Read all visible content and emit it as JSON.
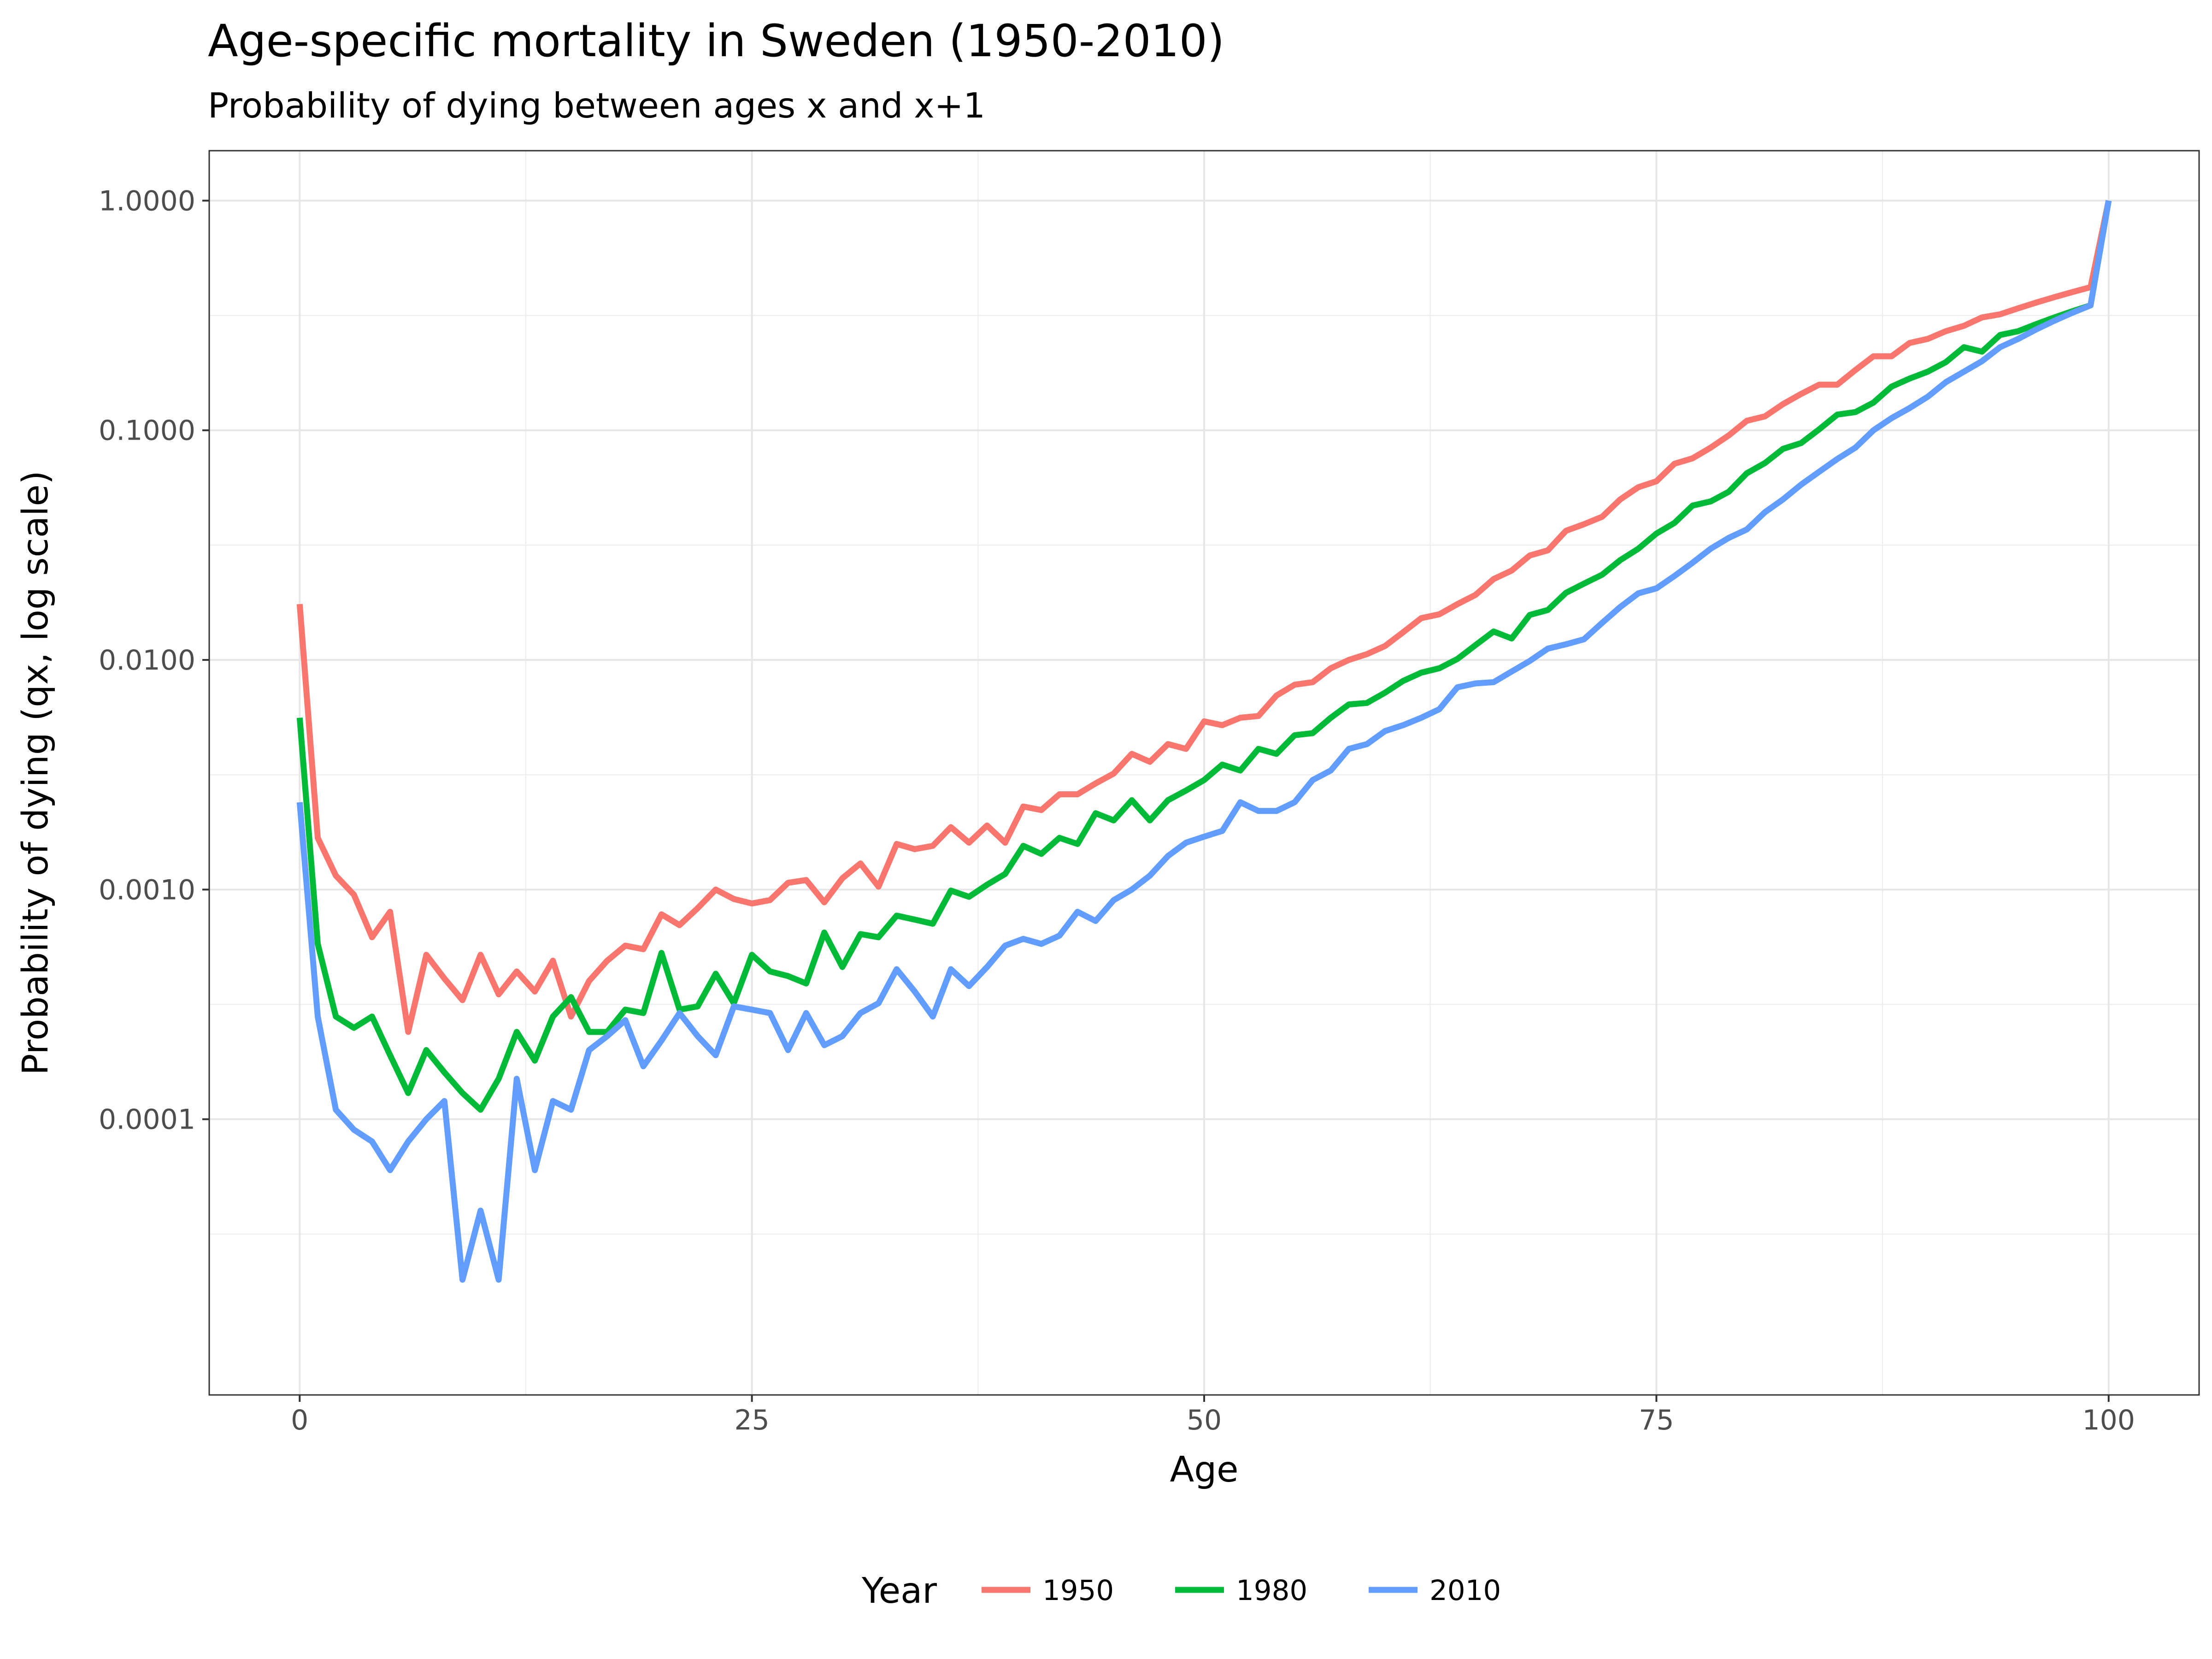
{
  "chart_data": {
    "type": "line",
    "title": "Age-specific mortality in Sweden (1950-2010)",
    "subtitle": "Probability of dying between ages x and x+1",
    "xlabel": "Age",
    "ylabel": "Probability of dying (qx, log scale)",
    "xlim": [
      -5,
      105
    ],
    "ylim": [
      6.3e-06,
      1.65
    ],
    "y_scale": "log",
    "x_ticks": [
      0,
      25,
      50,
      75,
      100
    ],
    "x_tick_labels": [
      "0",
      "25",
      "50",
      "75",
      "100"
    ],
    "y_ticks": [
      0.0001,
      0.001,
      0.01,
      0.1,
      1
    ],
    "y_tick_labels": [
      "0.0001",
      "0.0010",
      "0.0100",
      "0.1000",
      "1.0000"
    ],
    "grid": true,
    "legend_title": "Year",
    "legend_position": "bottom",
    "x": [
      0,
      1,
      2,
      3,
      4,
      5,
      6,
      7,
      8,
      9,
      10,
      11,
      12,
      13,
      14,
      15,
      16,
      17,
      18,
      19,
      20,
      21,
      22,
      23,
      24,
      25,
      26,
      27,
      28,
      29,
      30,
      31,
      32,
      33,
      34,
      35,
      36,
      37,
      38,
      39,
      40,
      41,
      42,
      43,
      44,
      45,
      46,
      47,
      48,
      49,
      50,
      51,
      52,
      53,
      54,
      55,
      56,
      57,
      58,
      59,
      60,
      61,
      62,
      63,
      64,
      65,
      66,
      67,
      68,
      69,
      70,
      71,
      72,
      73,
      74,
      75,
      76,
      77,
      78,
      79,
      80,
      81,
      82,
      83,
      84,
      85,
      86,
      87,
      88,
      89,
      90,
      91,
      92,
      93,
      94,
      95,
      96,
      97,
      98,
      99,
      100
    ],
    "series": [
      {
        "name": "1950",
        "color": "#F8766D",
        "values": [
          0.0175,
          0.00168,
          0.00115,
          0.00095,
          0.00062,
          0.0008,
          0.00024,
          0.00052,
          0.00041,
          0.00033,
          0.00052,
          0.00035,
          0.00044,
          0.00036,
          0.00049,
          0.00028,
          0.0004,
          0.00049,
          0.00057,
          0.00055,
          0.00078,
          0.0007,
          0.00083,
          0.001,
          0.00091,
          0.00087,
          0.0009,
          0.00107,
          0.0011,
          0.00088,
          0.00112,
          0.0013,
          0.00103,
          0.00158,
          0.0015,
          0.00155,
          0.00187,
          0.0016,
          0.0019,
          0.0016,
          0.0023,
          0.00222,
          0.0026,
          0.0026,
          0.0029,
          0.0032,
          0.0039,
          0.0036,
          0.0043,
          0.0041,
          0.0054,
          0.0052,
          0.0056,
          0.0057,
          0.007,
          0.0078,
          0.008,
          0.0092,
          0.01,
          0.0106,
          0.0115,
          0.0132,
          0.0152,
          0.0158,
          0.0175,
          0.0192,
          0.0225,
          0.0245,
          0.0285,
          0.03,
          0.0365,
          0.039,
          0.042,
          0.05,
          0.0565,
          0.06,
          0.0715,
          0.0755,
          0.084,
          0.095,
          0.11,
          0.115,
          0.13,
          0.144,
          0.158,
          0.158,
          0.183,
          0.21,
          0.21,
          0.24,
          0.25,
          0.27,
          0.285,
          0.31,
          0.32,
          0.34,
          0.36,
          0.38,
          0.4,
          0.42,
          1.0
        ]
      },
      {
        "name": "1980",
        "color": "#00BA38",
        "values": [
          0.0056,
          0.00058,
          0.00028,
          0.00025,
          0.00028,
          0.00019,
          0.00013,
          0.0002,
          0.00016,
          0.00013,
          0.00011,
          0.00015,
          0.00024,
          0.00018,
          0.00028,
          0.00034,
          0.00024,
          0.00024,
          0.0003,
          0.00029,
          0.00053,
          0.0003,
          0.00031,
          0.00043,
          0.00032,
          0.00052,
          0.00044,
          0.00042,
          0.00039,
          0.00065,
          0.00046,
          0.00064,
          0.00062,
          0.00077,
          0.00074,
          0.00071,
          0.00099,
          0.00093,
          0.00105,
          0.00117,
          0.00155,
          0.00143,
          0.00168,
          0.00158,
          0.00215,
          0.002,
          0.00245,
          0.002,
          0.00245,
          0.0027,
          0.003,
          0.0035,
          0.0033,
          0.0041,
          0.0039,
          0.0047,
          0.0048,
          0.0056,
          0.0064,
          0.0065,
          0.0072,
          0.0081,
          0.0088,
          0.0092,
          0.0101,
          0.0116,
          0.0133,
          0.0124,
          0.0157,
          0.0165,
          0.0196,
          0.0215,
          0.0235,
          0.0272,
          0.0305,
          0.0355,
          0.0395,
          0.047,
          0.049,
          0.054,
          0.065,
          0.072,
          0.083,
          0.088,
          0.101,
          0.117,
          0.12,
          0.132,
          0.155,
          0.168,
          0.18,
          0.198,
          0.23,
          0.22,
          0.26,
          0.27,
          0.29,
          0.31,
          0.33,
          0.35,
          1.0
        ]
      },
      {
        "name": "2010",
        "color": "#619CFF",
        "values": [
          0.0024,
          0.00028,
          0.00011,
          9e-05,
          8e-05,
          6e-05,
          8e-05,
          0.0001,
          0.00012,
          2e-05,
          4e-05,
          2e-05,
          0.00015,
          6e-05,
          0.00012,
          0.00011,
          0.0002,
          0.00023,
          0.00027,
          0.00017,
          0.00022,
          0.00029,
          0.00023,
          0.00019,
          0.00031,
          0.0003,
          0.00029,
          0.0002,
          0.00029,
          0.00021,
          0.00023,
          0.00029,
          0.00032,
          0.00045,
          0.00036,
          0.00028,
          0.00045,
          0.00038,
          0.00046,
          0.00057,
          0.00061,
          0.00058,
          0.00063,
          0.0008,
          0.00073,
          0.0009,
          0.001,
          0.00115,
          0.0014,
          0.0016,
          0.0017,
          0.0018,
          0.0024,
          0.0022,
          0.0022,
          0.0024,
          0.003,
          0.0033,
          0.0041,
          0.0043,
          0.0049,
          0.0052,
          0.0056,
          0.0061,
          0.0076,
          0.0079,
          0.008,
          0.0089,
          0.0099,
          0.0112,
          0.0117,
          0.0123,
          0.0145,
          0.017,
          0.0195,
          0.0205,
          0.0232,
          0.0265,
          0.0305,
          0.034,
          0.037,
          0.044,
          0.05,
          0.058,
          0.066,
          0.075,
          0.084,
          0.1,
          0.113,
          0.125,
          0.14,
          0.162,
          0.18,
          0.2,
          0.23,
          0.25,
          0.275,
          0.3,
          0.325,
          0.35,
          1.0
        ]
      }
    ]
  }
}
